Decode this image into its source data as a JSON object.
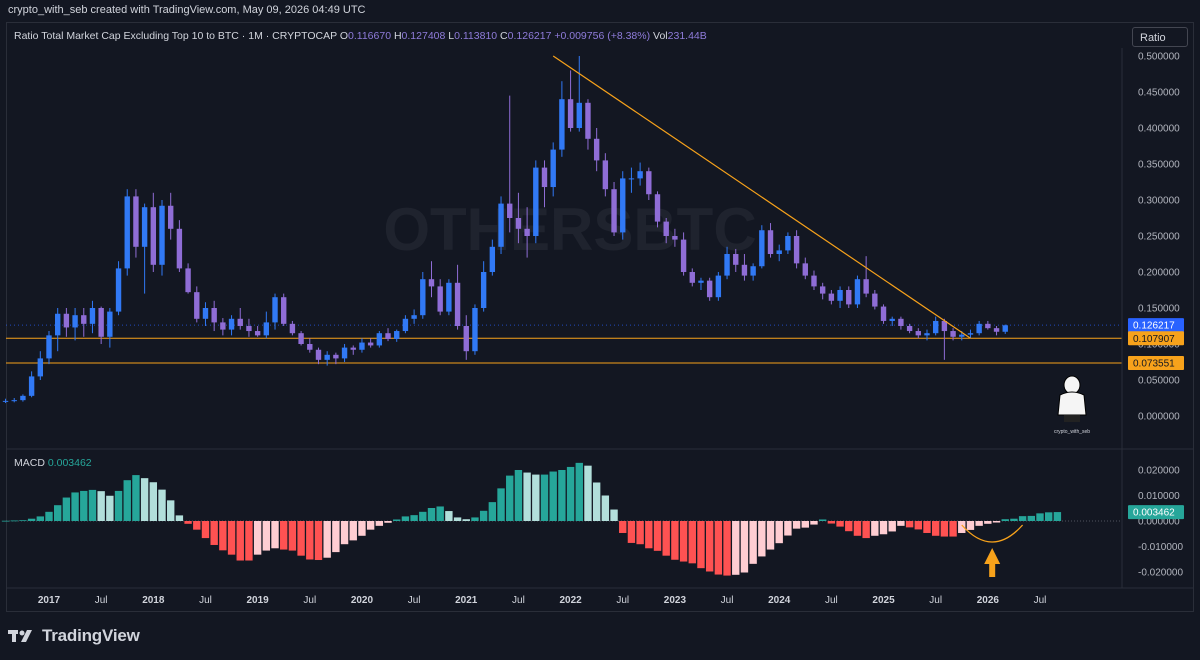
{
  "header": {
    "credit": "crypto_with_seb created with TradingView.com, May 09, 2026 04:49 UTC"
  },
  "legend": {
    "title": "Ratio Total Market Cap Excluding Top 10 to BTC · 1M · CRYPTOCAP",
    "o_label": "O",
    "o_value": "0.116670",
    "h_label": "H",
    "h_value": "0.127408",
    "l_label": "L",
    "l_value": "0.113810",
    "c_label": "C",
    "c_value": "0.126217",
    "change": "+0.009756 (+8.38%)",
    "vol_label": "Vol",
    "vol_value": "231.44B"
  },
  "ratio_button": "Ratio",
  "watermark": "OTHERSBTC",
  "avatar_caption": "crypto_with_seb",
  "macd": {
    "label": "MACD",
    "value": "0.003462"
  },
  "footer": {
    "brand": "TradingView"
  },
  "colors": {
    "bg": "#131722",
    "bull": "#3179f5",
    "bear": "#8f6dd6",
    "hist_up_strong": "#26a69a",
    "hist_up_weak": "#b2dfdb",
    "hist_down_strong": "#ff5252",
    "hist_down_weak": "#ffcdd2",
    "trendline": "#f7a21b",
    "level_line": "#f7a21b"
  },
  "chart_data": [
    {
      "type": "candlestick",
      "y_scale": "linear",
      "ylim": [
        -0.03,
        0.52
      ],
      "yticks": [
        "0.500000",
        "0.450000",
        "0.400000",
        "0.350000",
        "0.300000",
        "0.250000",
        "0.200000",
        "0.150000",
        "0.100000",
        "0.050000",
        "0.000000"
      ],
      "price_labels": [
        {
          "text": "0.126217",
          "value": 0.126217,
          "color": "#2962ff"
        },
        {
          "text": "0.107907",
          "value": 0.107907,
          "color": "#f7a21b"
        },
        {
          "text": "0.073551",
          "value": 0.073551,
          "color": "#f7a21b"
        }
      ],
      "horizontal_levels": [
        0.107907,
        0.073551
      ],
      "trendline": {
        "from": [
          "2021-11",
          0.5
        ],
        "to": [
          "2025-11",
          0.108
        ]
      },
      "x_start": "2016-04",
      "series": [
        {
          "name": "OTHERSBTC",
          "ohlc": [
            [
              0.028,
              0.032,
              0.024,
              0.027
            ],
            [
              0.027,
              0.03,
              0.022,
              0.024
            ],
            [
              0.024,
              0.027,
              0.02,
              0.022
            ],
            [
              0.022,
              0.025,
              0.018,
              0.02
            ],
            [
              0.02,
              0.024,
              0.018,
              0.021
            ],
            [
              0.021,
              0.025,
              0.019,
              0.022
            ],
            [
              0.022,
              0.03,
              0.02,
              0.028
            ],
            [
              0.028,
              0.062,
              0.026,
              0.055
            ],
            [
              0.055,
              0.09,
              0.05,
              0.08
            ],
            [
              0.08,
              0.118,
              0.072,
              0.112
            ],
            [
              0.112,
              0.15,
              0.09,
              0.142
            ],
            [
              0.142,
              0.15,
              0.11,
              0.123
            ],
            [
              0.123,
              0.15,
              0.105,
              0.14
            ],
            [
              0.14,
              0.15,
              0.11,
              0.128
            ],
            [
              0.128,
              0.16,
              0.115,
              0.15
            ],
            [
              0.15,
              0.152,
              0.1,
              0.11
            ],
            [
              0.11,
              0.15,
              0.095,
              0.145
            ],
            [
              0.145,
              0.215,
              0.14,
              0.205
            ],
            [
              0.205,
              0.315,
              0.195,
              0.305
            ],
            [
              0.305,
              0.315,
              0.22,
              0.235
            ],
            [
              0.235,
              0.295,
              0.17,
              0.29
            ],
            [
              0.29,
              0.31,
              0.2,
              0.21
            ],
            [
              0.21,
              0.3,
              0.195,
              0.292
            ],
            [
              0.292,
              0.31,
              0.245,
              0.26
            ],
            [
              0.26,
              0.272,
              0.2,
              0.205
            ],
            [
              0.205,
              0.212,
              0.17,
              0.172
            ],
            [
              0.172,
              0.18,
              0.13,
              0.135
            ],
            [
              0.135,
              0.158,
              0.125,
              0.15
            ],
            [
              0.15,
              0.16,
              0.118,
              0.13
            ],
            [
              0.13,
              0.136,
              0.112,
              0.12
            ],
            [
              0.12,
              0.14,
              0.112,
              0.135
            ],
            [
              0.135,
              0.15,
              0.12,
              0.125
            ],
            [
              0.125,
              0.135,
              0.11,
              0.118
            ],
            [
              0.118,
              0.125,
              0.11,
              0.112
            ],
            [
              0.112,
              0.145,
              0.108,
              0.13
            ],
            [
              0.13,
              0.17,
              0.12,
              0.165
            ],
            [
              0.165,
              0.17,
              0.125,
              0.128
            ],
            [
              0.128,
              0.132,
              0.112,
              0.115
            ],
            [
              0.115,
              0.118,
              0.098,
              0.1
            ],
            [
              0.1,
              0.108,
              0.088,
              0.092
            ],
            [
              0.092,
              0.095,
              0.072,
              0.078
            ],
            [
              0.078,
              0.09,
              0.07,
              0.085
            ],
            [
              0.085,
              0.088,
              0.072,
              0.08
            ],
            [
              0.08,
              0.1,
              0.075,
              0.095
            ],
            [
              0.095,
              0.098,
              0.085,
              0.092
            ],
            [
              0.092,
              0.108,
              0.088,
              0.102
            ],
            [
              0.102,
              0.108,
              0.095,
              0.098
            ],
            [
              0.098,
              0.118,
              0.095,
              0.115
            ],
            [
              0.115,
              0.122,
              0.104,
              0.107
            ],
            [
              0.107,
              0.12,
              0.103,
              0.118
            ],
            [
              0.118,
              0.14,
              0.115,
              0.135
            ],
            [
              0.135,
              0.148,
              0.128,
              0.14
            ],
            [
              0.14,
              0.2,
              0.135,
              0.19
            ],
            [
              0.19,
              0.215,
              0.165,
              0.18
            ],
            [
              0.18,
              0.19,
              0.14,
              0.145
            ],
            [
              0.145,
              0.19,
              0.14,
              0.185
            ],
            [
              0.185,
              0.21,
              0.12,
              0.125
            ],
            [
              0.125,
              0.14,
              0.078,
              0.09
            ],
            [
              0.09,
              0.155,
              0.085,
              0.15
            ],
            [
              0.15,
              0.215,
              0.145,
              0.2
            ],
            [
              0.2,
              0.245,
              0.195,
              0.235
            ],
            [
              0.235,
              0.305,
              0.225,
              0.295
            ],
            [
              0.295,
              0.445,
              0.255,
              0.275
            ],
            [
              0.275,
              0.31,
              0.24,
              0.26
            ],
            [
              0.26,
              0.29,
              0.22,
              0.25
            ],
            [
              0.25,
              0.355,
              0.24,
              0.345
            ],
            [
              0.345,
              0.355,
              0.29,
              0.318
            ],
            [
              0.318,
              0.38,
              0.305,
              0.37
            ],
            [
              0.37,
              0.465,
              0.36,
              0.44
            ],
            [
              0.44,
              0.48,
              0.395,
              0.4
            ],
            [
              0.4,
              0.5,
              0.395,
              0.435
            ],
            [
              0.435,
              0.44,
              0.37,
              0.385
            ],
            [
              0.385,
              0.4,
              0.34,
              0.355
            ],
            [
              0.355,
              0.365,
              0.305,
              0.315
            ],
            [
              0.315,
              0.325,
              0.25,
              0.255
            ],
            [
              0.255,
              0.34,
              0.245,
              0.33
            ],
            [
              0.33,
              0.345,
              0.31,
              0.33
            ],
            [
              0.33,
              0.352,
              0.32,
              0.34
            ],
            [
              0.34,
              0.345,
              0.3,
              0.308
            ],
            [
              0.308,
              0.312,
              0.262,
              0.27
            ],
            [
              0.27,
              0.275,
              0.24,
              0.25
            ],
            [
              0.25,
              0.26,
              0.235,
              0.245
            ],
            [
              0.245,
              0.255,
              0.195,
              0.2
            ],
            [
              0.2,
              0.205,
              0.18,
              0.185
            ],
            [
              0.185,
              0.192,
              0.175,
              0.188
            ],
            [
              0.188,
              0.192,
              0.16,
              0.165
            ],
            [
              0.165,
              0.2,
              0.16,
              0.195
            ],
            [
              0.195,
              0.235,
              0.19,
              0.225
            ],
            [
              0.225,
              0.232,
              0.2,
              0.21
            ],
            [
              0.21,
              0.225,
              0.188,
              0.195
            ],
            [
              0.195,
              0.212,
              0.188,
              0.208
            ],
            [
              0.208,
              0.265,
              0.205,
              0.258
            ],
            [
              0.258,
              0.268,
              0.22,
              0.225
            ],
            [
              0.225,
              0.238,
              0.215,
              0.23
            ],
            [
              0.23,
              0.255,
              0.225,
              0.25
            ],
            [
              0.25,
              0.258,
              0.205,
              0.212
            ],
            [
              0.212,
              0.22,
              0.19,
              0.195
            ],
            [
              0.195,
              0.202,
              0.175,
              0.18
            ],
            [
              0.18,
              0.185,
              0.162,
              0.17
            ],
            [
              0.17,
              0.175,
              0.155,
              0.16
            ],
            [
              0.16,
              0.18,
              0.15,
              0.175
            ],
            [
              0.175,
              0.18,
              0.15,
              0.155
            ],
            [
              0.155,
              0.195,
              0.15,
              0.19
            ],
            [
              0.19,
              0.222,
              0.165,
              0.17
            ],
            [
              0.17,
              0.175,
              0.148,
              0.152
            ],
            [
              0.152,
              0.155,
              0.128,
              0.132
            ],
            [
              0.132,
              0.138,
              0.125,
              0.135
            ],
            [
              0.135,
              0.138,
              0.12,
              0.125
            ],
            [
              0.125,
              0.128,
              0.115,
              0.118
            ],
            [
              0.118,
              0.122,
              0.108,
              0.112
            ],
            [
              0.112,
              0.12,
              0.105,
              0.115
            ],
            [
              0.115,
              0.138,
              0.112,
              0.132
            ],
            [
              0.132,
              0.135,
              0.078,
              0.118
            ],
            [
              0.118,
              0.122,
              0.105,
              0.11
            ],
            [
              0.11,
              0.118,
              0.105,
              0.113
            ],
            [
              0.113,
              0.12,
              0.108,
              0.115
            ],
            [
              0.115,
              0.132,
              0.112,
              0.128
            ],
            [
              0.128,
              0.132,
              0.12,
              0.122
            ],
            [
              0.122,
              0.125,
              0.112,
              0.117
            ],
            [
              0.117,
              0.127,
              0.114,
              0.126
            ]
          ]
        }
      ]
    },
    {
      "type": "bar",
      "title": "MACD",
      "ylim": [
        -0.026,
        0.024
      ],
      "yticks": [
        "0.020000",
        "0.010000",
        "0.000000",
        "-0.010000",
        "-0.020000"
      ],
      "price_labels": [
        {
          "text": "0.003462",
          "value": 0.003462,
          "color": "#26a69a"
        }
      ],
      "x_start": "2016-08",
      "values": [
        0.0001,
        0.0002,
        0.0003,
        0.0009,
        0.0018,
        0.0036,
        0.0062,
        0.0092,
        0.0112,
        0.0118,
        0.0122,
        0.0117,
        0.0099,
        0.0118,
        0.016,
        0.018,
        0.0168,
        0.0152,
        0.0123,
        0.0081,
        0.0022,
        -0.0011,
        -0.0034,
        -0.0067,
        -0.0094,
        -0.0115,
        -0.0132,
        -0.0155,
        -0.0155,
        -0.0132,
        -0.0116,
        -0.0107,
        -0.0112,
        -0.0116,
        -0.0136,
        -0.0151,
        -0.0153,
        -0.0144,
        -0.0122,
        -0.0091,
        -0.0076,
        -0.0058,
        -0.0034,
        -0.0019,
        -0.0007,
        0.0006,
        0.0018,
        0.0023,
        0.0036,
        0.0051,
        0.0057,
        0.0039,
        0.0014,
        0.0007,
        0.0014,
        0.004,
        0.0074,
        0.0128,
        0.0178,
        0.02,
        0.019,
        0.0182,
        0.0182,
        0.0194,
        0.02,
        0.0212,
        0.0228,
        0.0217,
        0.0151,
        0.01,
        0.0045,
        -0.0047,
        -0.0086,
        -0.0091,
        -0.0107,
        -0.0117,
        -0.0136,
        -0.0152,
        -0.0159,
        -0.0166,
        -0.0185,
        -0.0198,
        -0.021,
        -0.0214,
        -0.0211,
        -0.0202,
        -0.0168,
        -0.0139,
        -0.0112,
        -0.0087,
        -0.0057,
        -0.003,
        -0.0026,
        -0.0014,
        0.0006,
        -0.001,
        -0.0022,
        -0.004,
        -0.0058,
        -0.0067,
        -0.0058,
        -0.0052,
        -0.0041,
        -0.0019,
        -0.0025,
        -0.0033,
        -0.0047,
        -0.0058,
        -0.0061,
        -0.0061,
        -0.0047,
        -0.0035,
        -0.0019,
        -0.0011,
        -0.0006,
        0.0007,
        0.0009,
        0.0019,
        0.002,
        0.003,
        0.0034,
        0.0035
      ]
    }
  ],
  "x_axis_labels": [
    "2017",
    "Jul",
    "2018",
    "Jul",
    "2019",
    "Jul",
    "2020",
    "Jul",
    "2021",
    "Jul",
    "2022",
    "Jul",
    "2023",
    "Jul",
    "2024",
    "Jul",
    "2025",
    "Jul",
    "2026",
    "Jul"
  ]
}
